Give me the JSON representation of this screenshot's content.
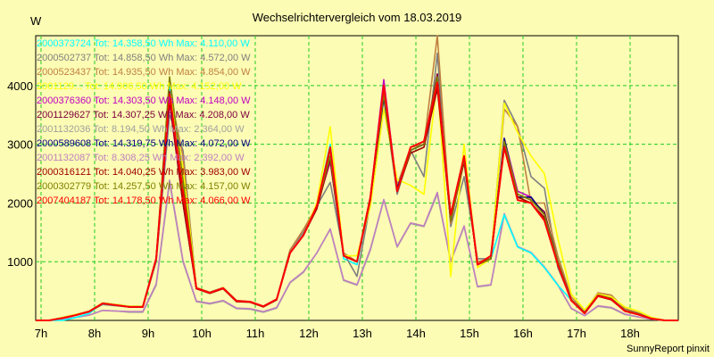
{
  "chart_data": {
    "type": "line",
    "title": "Wechselrichtervergleich vom 18.03.2019",
    "ylabel": "W",
    "xlabel": "",
    "credit": "SunnyReport pinxit",
    "grid": true,
    "legend_position": "top-left",
    "x_start_hour": 6.9,
    "x_end_hour": 18.9,
    "ylim": [
      0,
      4850
    ],
    "x_ticks": [
      {
        "label": "7h",
        "hour": 7
      },
      {
        "label": "8h",
        "hour": 8
      },
      {
        "label": "9h",
        "hour": 9
      },
      {
        "label": "10h",
        "hour": 10
      },
      {
        "label": "11h",
        "hour": 11
      },
      {
        "label": "12h",
        "hour": 12
      },
      {
        "label": "13h",
        "hour": 13
      },
      {
        "label": "14h",
        "hour": 14
      },
      {
        "label": "15h",
        "hour": 15
      },
      {
        "label": "16h",
        "hour": 16
      },
      {
        "label": "17h",
        "hour": 17
      },
      {
        "label": "18h",
        "hour": 18
      }
    ],
    "y_ticks": [
      1000,
      2000,
      3000,
      4000
    ],
    "x_hours": [
      6.9,
      7.15,
      7.4,
      7.65,
      7.9,
      8.15,
      8.4,
      8.65,
      8.9,
      9.15,
      9.4,
      9.65,
      9.9,
      10.15,
      10.4,
      10.65,
      10.9,
      11.15,
      11.4,
      11.65,
      11.9,
      12.15,
      12.4,
      12.65,
      12.9,
      13.15,
      13.4,
      13.65,
      13.9,
      14.15,
      14.4,
      14.65,
      14.9,
      15.15,
      15.4,
      15.65,
      15.9,
      16.15,
      16.4,
      16.65,
      16.9,
      17.15,
      17.4,
      17.65,
      17.9,
      18.15,
      18.4,
      18.65,
      18.9
    ],
    "series": [
      {
        "name": "2000373724",
        "label": "2000373724 Tot: 14.358,50 Wh Max: 4.110,00 W",
        "color": "#00ffff",
        "values": [
          0,
          0,
          0,
          50,
          120,
          300,
          270,
          240,
          240,
          1050,
          4000,
          2000,
          550,
          480,
          560,
          330,
          320,
          240,
          360,
          1150,
          1450,
          1950,
          3000,
          1050,
          950,
          2100,
          4000,
          2200,
          2900,
          3000,
          4100,
          1750,
          2700,
          950,
          1050,
          1800,
          1250,
          1150,
          900,
          600,
          350,
          120,
          420,
          350,
          170,
          100,
          30,
          0,
          0
        ]
      },
      {
        "name": "2000502737",
        "label": "2000502737 Tot: 14.858,50 Wh Max: 4.572,00 W",
        "color": "#808080",
        "values": [
          0,
          0,
          50,
          100,
          150,
          270,
          250,
          230,
          230,
          1000,
          3500,
          2900,
          540,
          470,
          550,
          320,
          310,
          240,
          350,
          1200,
          1500,
          1950,
          2350,
          1150,
          750,
          2000,
          3800,
          2150,
          2900,
          2450,
          4550,
          1600,
          2450,
          1050,
          1050,
          3750,
          3300,
          2450,
          2250,
          900,
          350,
          120,
          430,
          380,
          170,
          120,
          30,
          0,
          0
        ]
      },
      {
        "name": "2000523437",
        "label": "2000523437 Tot: 14.935,50 Wh Max: 4.854,00 W",
        "color": "#c08040",
        "values": [
          0,
          0,
          40,
          100,
          160,
          290,
          260,
          240,
          240,
          1050,
          3900,
          2800,
          560,
          480,
          560,
          340,
          320,
          240,
          360,
          1200,
          1550,
          1950,
          2900,
          1150,
          1000,
          2100,
          3800,
          2300,
          2950,
          3000,
          4850,
          1650,
          2800,
          1000,
          1050,
          3600,
          3300,
          2000,
          2000,
          1100,
          400,
          150,
          470,
          430,
          200,
          130,
          40,
          0,
          0
        ]
      },
      {
        "name": "2001129...",
        "label": "2001129... Tot: 14.906,50 Wh Max: 4.152,00 W",
        "color": "#ffff00",
        "values": [
          0,
          0,
          50,
          100,
          150,
          300,
          270,
          240,
          240,
          1050,
          3900,
          2600,
          560,
          470,
          560,
          330,
          310,
          240,
          360,
          1150,
          1450,
          2000,
          3300,
          1100,
          1100,
          1950,
          3600,
          2400,
          2300,
          2150,
          4100,
          750,
          3000,
          900,
          1050,
          3700,
          3200,
          2800,
          2500,
          1400,
          450,
          180,
          450,
          400,
          230,
          160,
          50,
          0,
          0
        ]
      },
      {
        "name": "2000376360",
        "label": "2000376360 Tot: 14.303,50 Wh Max: 4.148,00 W",
        "color": "#c000c0",
        "values": [
          0,
          0,
          40,
          90,
          150,
          290,
          260,
          230,
          230,
          1050,
          3700,
          2000,
          540,
          470,
          550,
          330,
          320,
          240,
          360,
          1150,
          1450,
          1950,
          2700,
          1100,
          1000,
          2100,
          4100,
          2200,
          2900,
          3000,
          4150,
          1700,
          2750,
          950,
          1050,
          3100,
          2200,
          2100,
          1800,
          1000,
          350,
          130,
          420,
          360,
          170,
          110,
          30,
          0,
          0
        ]
      },
      {
        "name": "2001129627",
        "label": "2001129627 Tot: 14.307,25 Wh Max: 4.208,00 W",
        "color": "#800040",
        "values": [
          0,
          0,
          40,
          90,
          150,
          290,
          260,
          230,
          230,
          1050,
          3900,
          2100,
          550,
          470,
          550,
          330,
          320,
          240,
          360,
          1150,
          1450,
          1950,
          2800,
          1100,
          1000,
          2100,
          3900,
          2200,
          2900,
          3000,
          4200,
          1700,
          2750,
          950,
          1050,
          3000,
          2150,
          2050,
          1850,
          1000,
          350,
          130,
          430,
          370,
          170,
          110,
          30,
          0,
          0
        ]
      },
      {
        "name": "2001132036",
        "label": "2001132036 Tot: 8.194,50 Wh Max: 2.364,00 W",
        "color": "#a0a0a0",
        "values": [
          0,
          0,
          20,
          50,
          90,
          170,
          160,
          140,
          140,
          600,
          2350,
          1000,
          320,
          280,
          330,
          200,
          190,
          140,
          210,
          640,
          820,
          1150,
          1550,
          680,
          600,
          1200,
          2050,
          1250,
          1650,
          1600,
          2150,
          1000,
          1600,
          570,
          600,
          1800,
          1250,
          1150,
          900,
          600,
          200,
          80,
          240,
          210,
          100,
          60,
          20,
          0,
          0
        ]
      },
      {
        "name": "2000589608",
        "label": "2000589608 Tot: 14.319,75 Wh Max: 4.072,00 W",
        "color": "#000080",
        "values": [
          0,
          0,
          40,
          90,
          150,
          290,
          260,
          230,
          230,
          1050,
          3800,
          2100,
          550,
          470,
          550,
          330,
          320,
          240,
          360,
          1150,
          1450,
          1950,
          2750,
          1100,
          1000,
          2100,
          3800,
          2250,
          2900,
          3000,
          4050,
          1700,
          2750,
          950,
          1050,
          3100,
          2100,
          2100,
          1800,
          1000,
          350,
          130,
          430,
          370,
          170,
          110,
          30,
          0,
          0
        ]
      },
      {
        "name": "2001132087",
        "label": "2001132087 Tot: 8.308,25 Wh Max: 2.392,00 W",
        "color": "#c080c0",
        "values": [
          0,
          0,
          20,
          50,
          90,
          170,
          160,
          150,
          150,
          620,
          2390,
          1020,
          330,
          290,
          340,
          210,
          200,
          150,
          220,
          650,
          830,
          1150,
          1560,
          690,
          610,
          1220,
          2060,
          1260,
          1660,
          1610,
          2180,
          1010,
          1610,
          580,
          610,
          1820,
          1260,
          1160,
          910,
          610,
          210,
          80,
          250,
          220,
          110,
          60,
          20,
          0,
          0
        ]
      },
      {
        "name": "2000316121",
        "label": "2000316121 Tot: 14.040,25 Wh Max: 3.983,00 W",
        "color": "#a00000",
        "values": [
          0,
          0,
          40,
          90,
          150,
          290,
          260,
          230,
          230,
          1050,
          3750,
          2000,
          540,
          460,
          540,
          320,
          310,
          230,
          350,
          1150,
          1450,
          1900,
          2750,
          1100,
          1000,
          2050,
          3950,
          2200,
          2850,
          2950,
          3950,
          1700,
          2700,
          950,
          1050,
          3000,
          2100,
          2000,
          1750,
          950,
          340,
          120,
          410,
          350,
          160,
          100,
          30,
          0,
          0
        ]
      },
      {
        "name": "2000302779",
        "label": "2000302779 Tot: 14.257,50 Wh Max: 4.157,00 W",
        "color": "#808000",
        "values": [
          0,
          0,
          40,
          90,
          150,
          290,
          260,
          230,
          230,
          1050,
          4150,
          2400,
          550,
          470,
          550,
          330,
          320,
          240,
          360,
          1150,
          1450,
          1950,
          2800,
          1100,
          1000,
          2100,
          3850,
          2200,
          2900,
          3000,
          4150,
          1700,
          2750,
          950,
          1050,
          3050,
          2150,
          2050,
          1800,
          1000,
          350,
          130,
          430,
          370,
          170,
          110,
          30,
          0,
          0
        ]
      },
      {
        "name": "2007404187",
        "label": "2007404187 Tot: 14.178,50 Wh Max: 4.066,00 W",
        "color": "#ff0000",
        "values": [
          0,
          0,
          40,
          90,
          150,
          290,
          260,
          230,
          230,
          1050,
          3850,
          2200,
          550,
          470,
          550,
          330,
          320,
          240,
          360,
          1150,
          1450,
          1950,
          2950,
          1100,
          1000,
          2100,
          4000,
          2200,
          2950,
          3050,
          4050,
          1800,
          2800,
          950,
          1100,
          2950,
          2050,
          2000,
          1700,
          950,
          340,
          120,
          420,
          360,
          160,
          100,
          30,
          0,
          0
        ]
      }
    ]
  }
}
